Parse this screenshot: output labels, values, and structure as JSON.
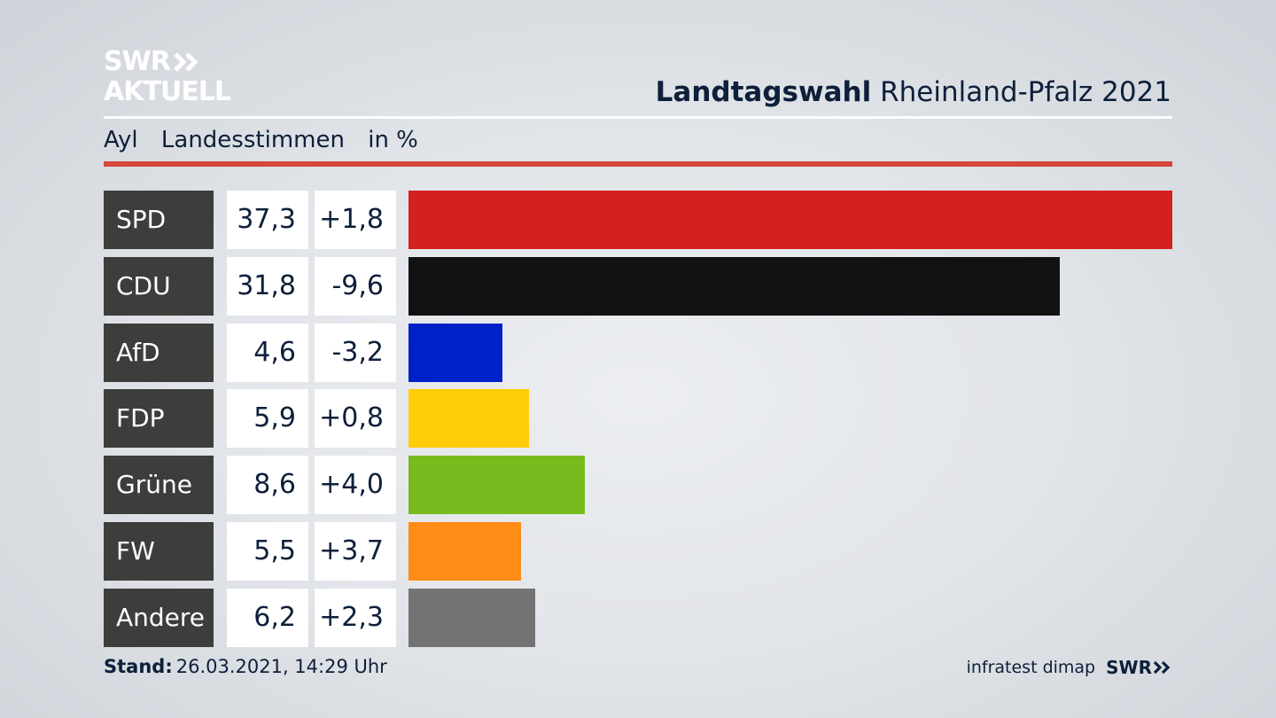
{
  "logo": {
    "line1": "SWR",
    "line2": "AKTUELL"
  },
  "header": {
    "title_bold": "Landtagswahl",
    "title_rest": "Rheinland-Pfalz 2021"
  },
  "subhead": {
    "place": "Ayl",
    "measure": "Landesstimmen",
    "unit": "in %"
  },
  "footer": {
    "stand_label": "Stand:",
    "stand_value": "26.03.2021, 14:29 Uhr",
    "source": "infratest dimap",
    "brand": "SWR"
  },
  "chart_data": {
    "type": "bar",
    "orientation": "horizontal",
    "categories": [
      "SPD",
      "CDU",
      "AfD",
      "FDP",
      "Grüne",
      "FW",
      "Andere"
    ],
    "values": [
      37.3,
      31.8,
      4.6,
      5.9,
      8.6,
      5.5,
      6.2
    ],
    "value_labels": [
      "37,3",
      "31,8",
      "4,6",
      "5,9",
      "8,6",
      "5,5",
      "6,2"
    ],
    "changes": [
      1.8,
      -9.6,
      -3.2,
      0.8,
      4.0,
      3.7,
      2.3
    ],
    "change_labels": [
      "+1,8",
      "-9,6",
      "-3,2",
      "+0,8",
      "+4,0",
      "+3,7",
      "+2,3"
    ],
    "colors": [
      "#d52020",
      "#121212",
      "#0020c8",
      "#ffcc08",
      "#78bb1e",
      "#ff8c14",
      "#737373"
    ],
    "xlim": [
      0,
      37.3
    ]
  }
}
